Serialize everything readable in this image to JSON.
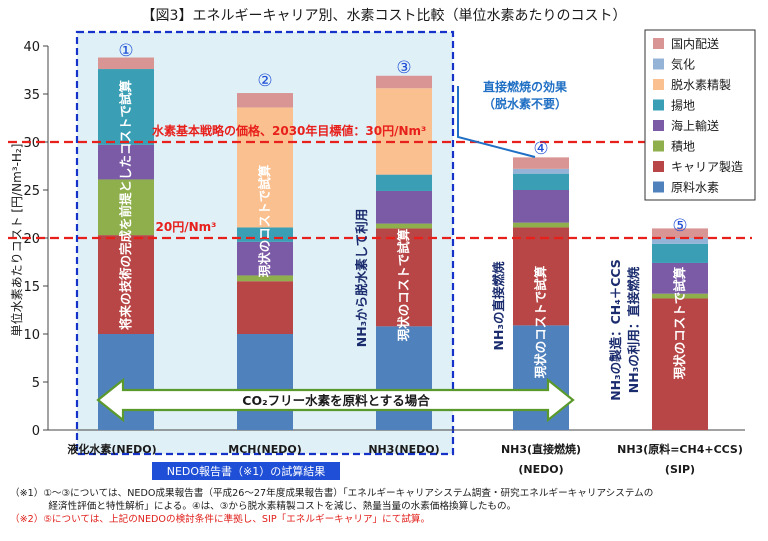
{
  "chart_data": {
    "type": "bar",
    "title": "【図3】エネルギーキャリア別、水素コスト比較（単位水素あたりのコスト）",
    "ylabel": "単位水素あたりコスト [円/Nm³-H₂]",
    "ylim": [
      0,
      40
    ],
    "yticks": [
      0,
      5,
      10,
      15,
      20,
      25,
      30,
      35,
      40
    ],
    "grid": false,
    "legend_position": "top-right",
    "categories": [
      {
        "name": "液化水素(NEDO)",
        "name2": ""
      },
      {
        "name": "MCH(NEDO)",
        "name2": ""
      },
      {
        "name": "NH3(NEDO)",
        "name2": ""
      },
      {
        "name": "NH3(直接燃焼)",
        "name2": "(NEDO)"
      },
      {
        "name": "NH3(原料=CH4+CCS)",
        "name2": "(SIP)"
      }
    ],
    "bar_numbers": [
      "①",
      "②",
      "③",
      "④",
      "⑤"
    ],
    "bar_texts": [
      [
        "将来の技術の完成を前提としたコストで試算"
      ],
      [
        "現状のコストで試算"
      ],
      [
        "NH₃から脱水素して利用",
        "現状のコストで試算"
      ],
      [
        "NH₃の直接燃焼",
        "現状のコストで試算"
      ],
      [
        "NH₃の製造：CH₄＋CCS",
        "NH₃の利用：直接燃焼",
        "現状のコストで試算"
      ]
    ],
    "series": [
      {
        "name": "原料水素",
        "color": "#4f81bd",
        "values": [
          10.0,
          10.0,
          10.8,
          10.9,
          0
        ]
      },
      {
        "name": "キャリア製造",
        "color": "#b94646",
        "values": [
          10.3,
          5.5,
          10.2,
          10.2,
          13.7
        ]
      },
      {
        "name": "積地",
        "color": "#8faf4c",
        "values": [
          5.8,
          0.6,
          0.5,
          0.5,
          0.5
        ]
      },
      {
        "name": "海上輸送",
        "color": "#7b5aa6",
        "values": [
          3.6,
          3.5,
          3.4,
          3.4,
          3.2
        ]
      },
      {
        "name": "揚地",
        "color": "#3a9fb5",
        "values": [
          7.9,
          1.5,
          1.7,
          1.7,
          2.0
        ]
      },
      {
        "name": "脱水素精製",
        "color": "#fac090",
        "values": [
          0,
          12.5,
          9.0,
          0,
          0
        ]
      },
      {
        "name": "気化",
        "color": "#95b3d7",
        "values": [
          0,
          0,
          0,
          0.5,
          0.6
        ]
      },
      {
        "name": "国内配送",
        "color": "#d99594",
        "values": [
          1.2,
          1.5,
          1.3,
          1.2,
          1.0
        ]
      }
    ],
    "reference_lines": [
      {
        "value": 30,
        "label": "水素基本戦略の価格、2030年目標値：30円/Nm³",
        "color": "#e8201c"
      },
      {
        "value": 20,
        "label": "20円/Nm³",
        "color": "#e8201c"
      }
    ],
    "annotation": {
      "line1": "直接燃焼の効果",
      "line2": "（脱水素不要）"
    },
    "arrow_label": "CO₂フリー水素を原料とする場合",
    "group_label": "NEDO報告書（※1）の試算結果"
  },
  "footnotes": [
    "（※1）①～③については、NEDO成果報告書（平成26～27年度成果報告書）「エネルギーキャリアシステム調査・研究エネルギーキャリアシステムの",
    "　　　　経済性評価と特性解析」による。④は、③から脱水素精製コストを減じ、熱量当量の水素価格換算したもの。",
    "（※2）⑤については、上記のNEDOの検討条件に準拠し、SIP「エネルギーキャリア」にて試算。"
  ]
}
